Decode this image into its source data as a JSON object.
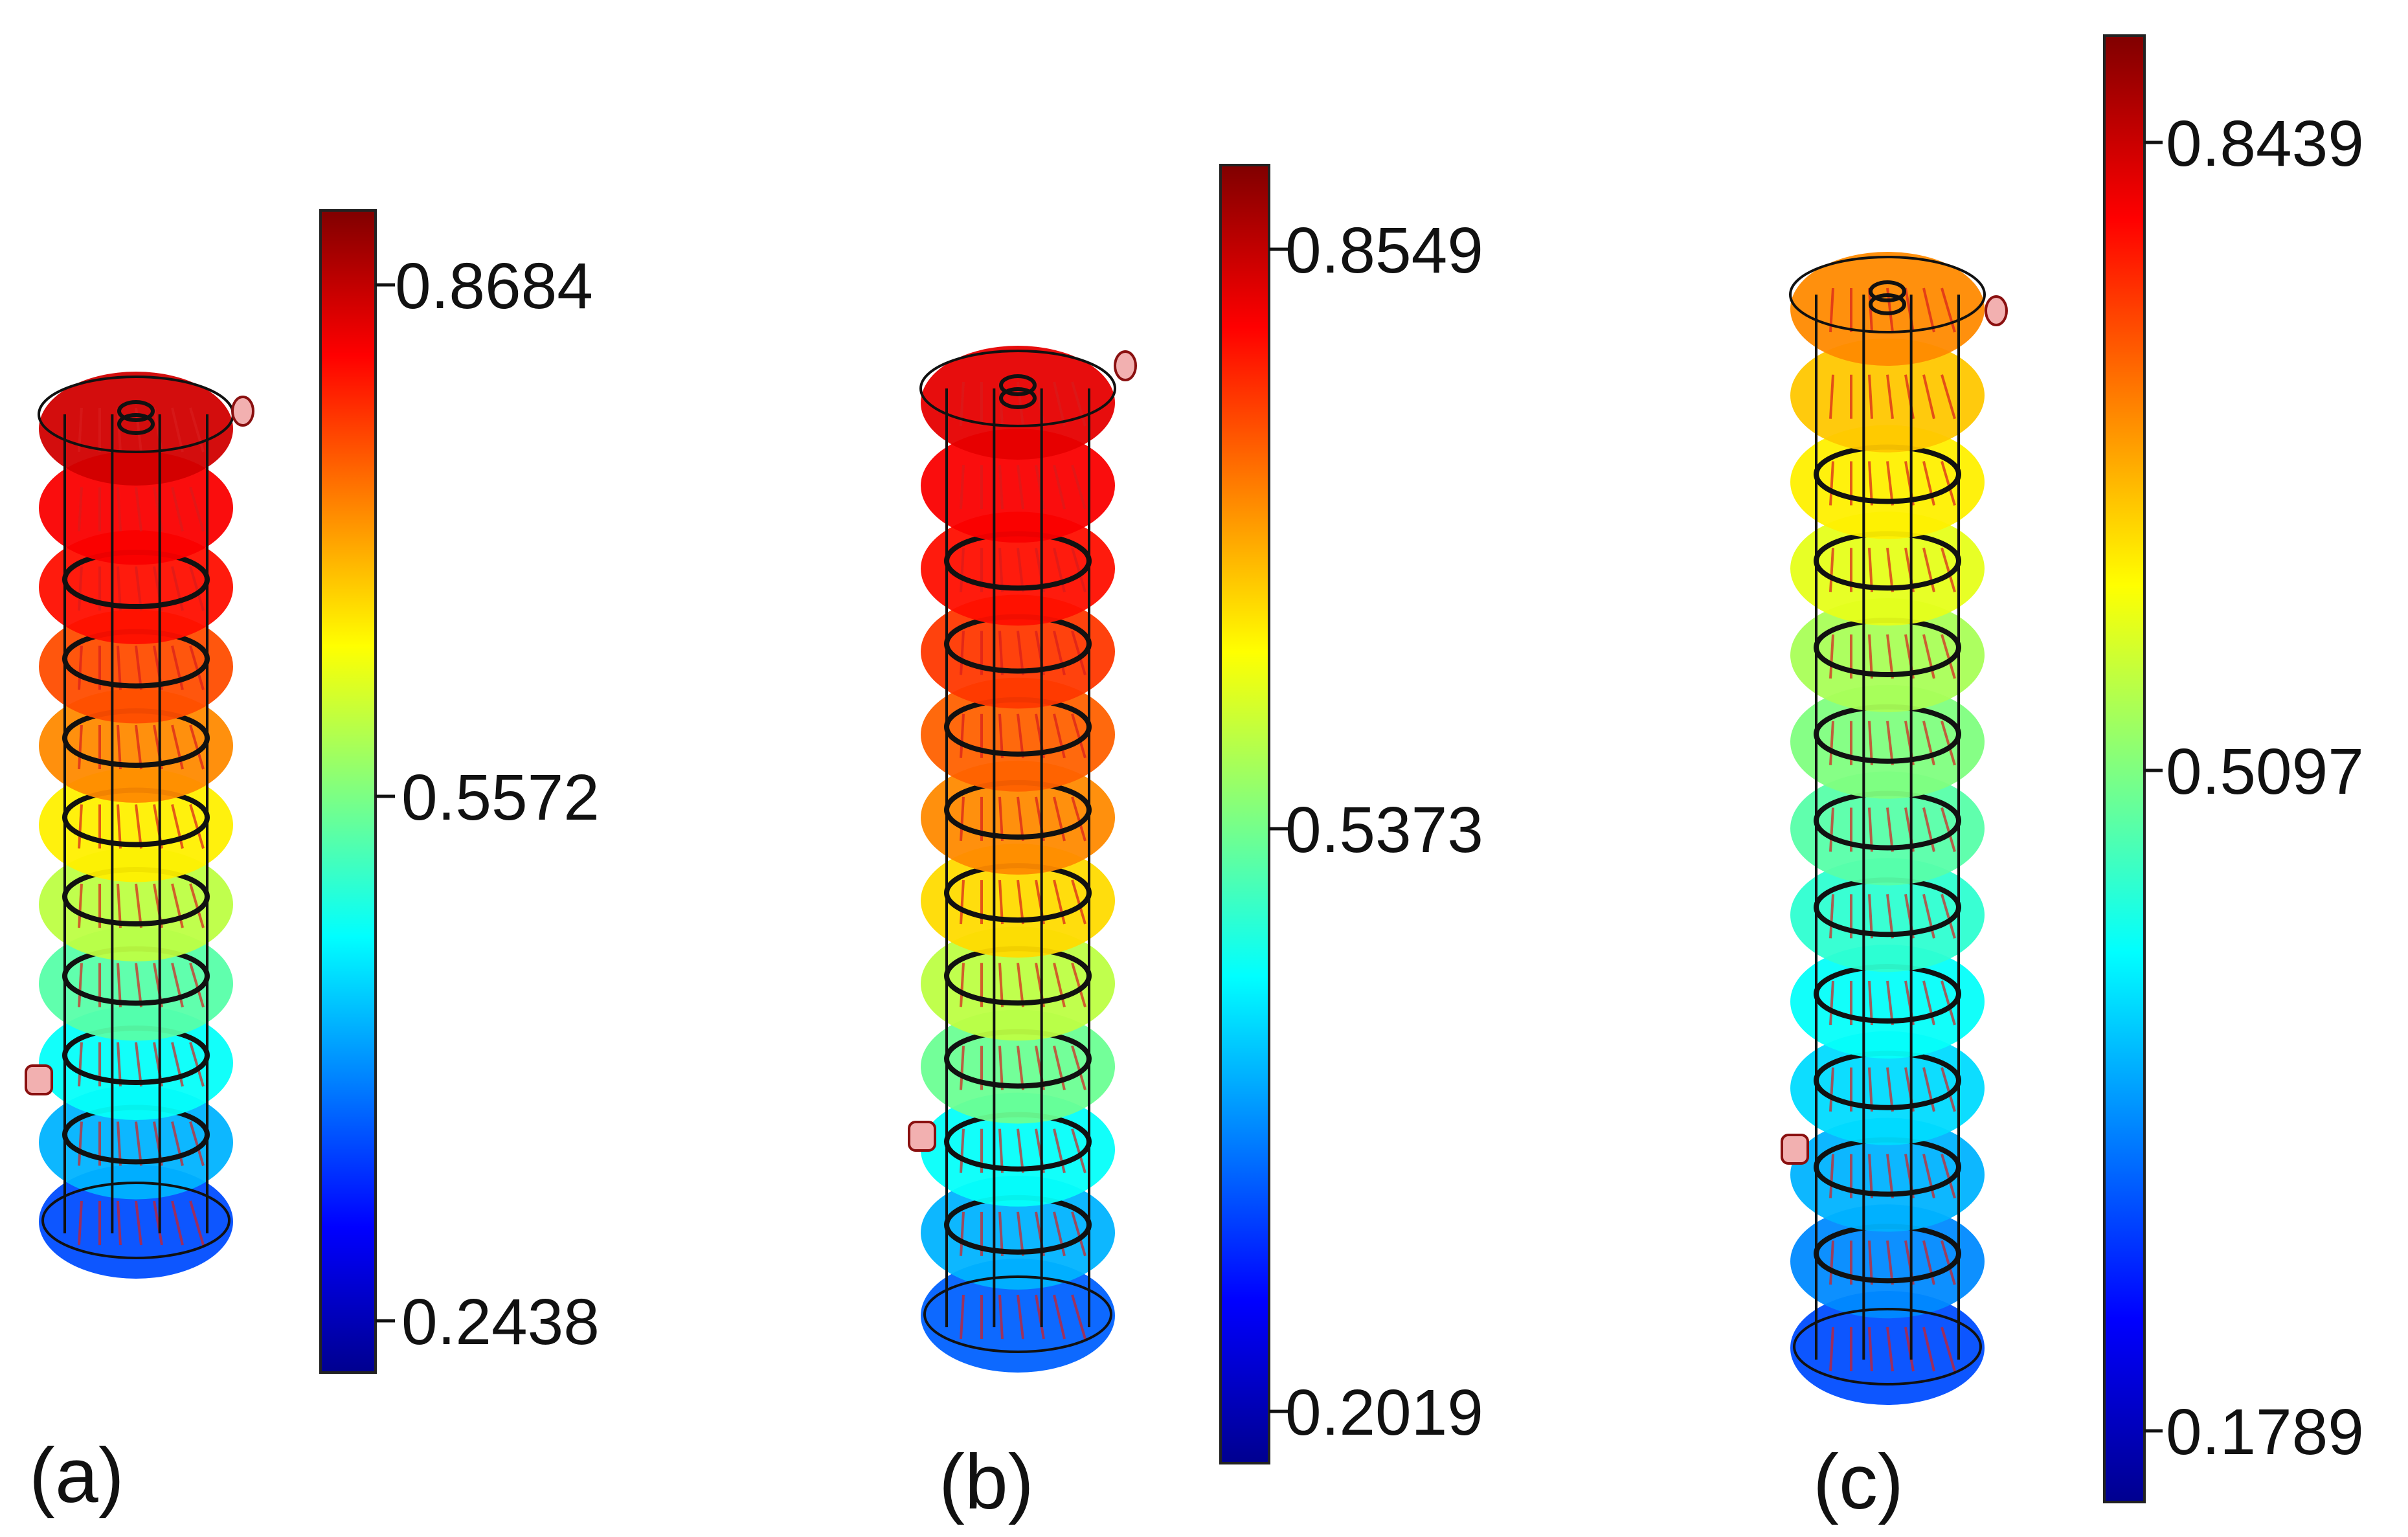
{
  "panels": [
    {
      "label": "(a)",
      "colorbar": {
        "max": "0.8684",
        "mid": "0.5572",
        "min": "0.2438"
      }
    },
    {
      "label": "(b)",
      "colorbar": {
        "max": "0.8549",
        "mid": "0.5373",
        "min": "0.2019"
      }
    },
    {
      "label": "(c)",
      "colorbar": {
        "max": "0.8439",
        "mid": "0.5097",
        "min": "0.1789"
      }
    }
  ],
  "colormap": [
    "#00008f",
    "#0000ff",
    "#0080ff",
    "#00ffff",
    "#80ff80",
    "#ffff00",
    "#ff8000",
    "#ff0000",
    "#800000"
  ]
}
